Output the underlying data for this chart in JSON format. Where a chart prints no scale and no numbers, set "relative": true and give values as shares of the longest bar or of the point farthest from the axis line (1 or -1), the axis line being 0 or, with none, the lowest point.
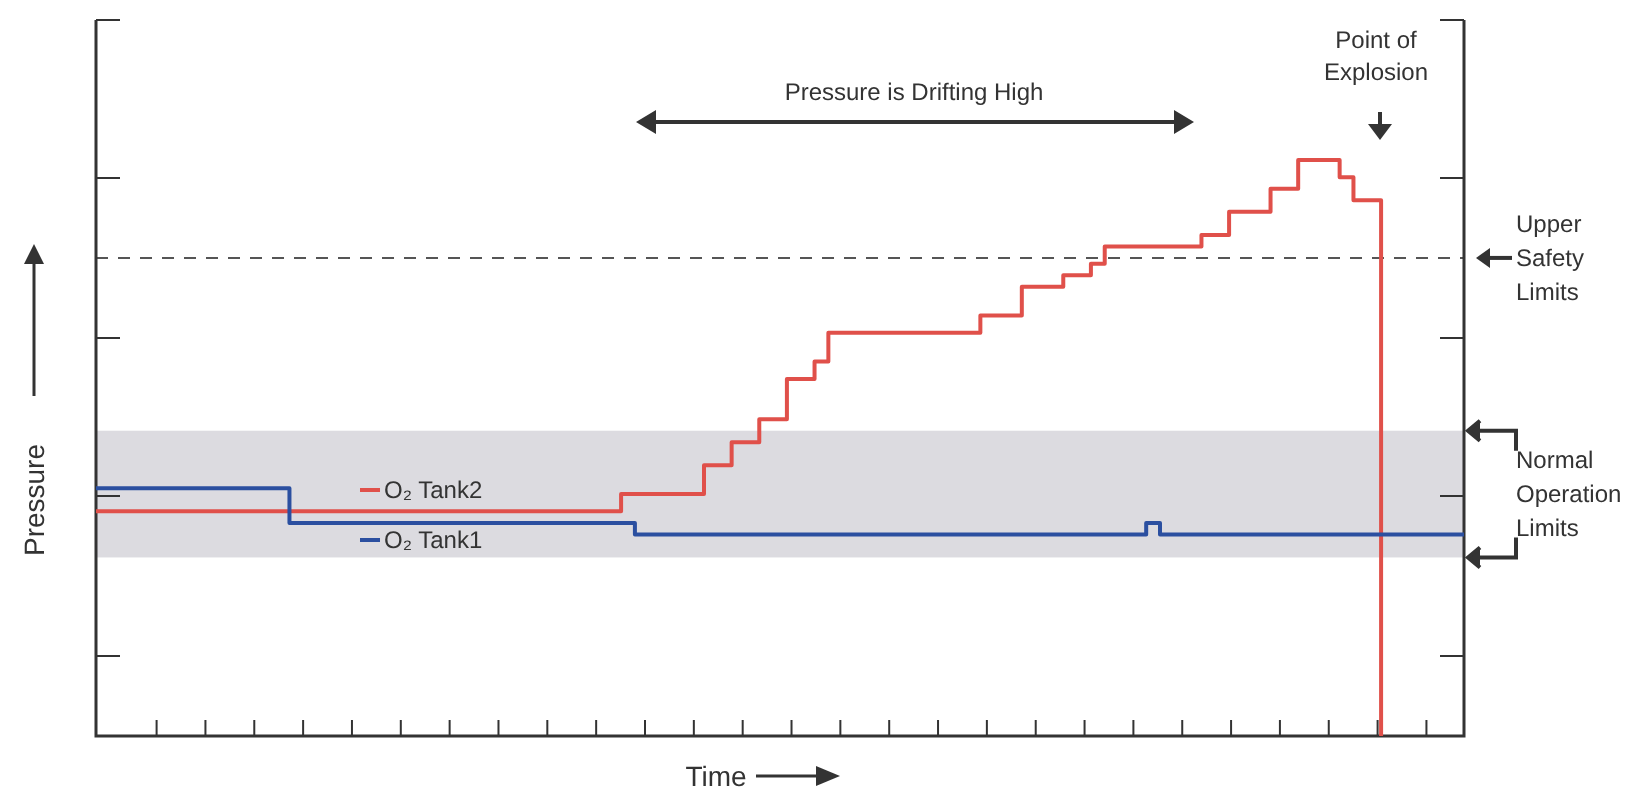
{
  "chart_data": {
    "type": "step",
    "relative": true,
    "xlabel": "Time",
    "ylabel": "Pressure",
    "legend": "left",
    "grid": false,
    "categories": [
      null,
      null,
      null,
      null,
      null,
      null,
      null,
      null,
      null,
      null,
      null,
      null,
      null,
      null,
      null,
      null,
      null,
      null,
      null,
      null,
      null,
      null,
      null,
      null,
      null,
      null,
      null,
      null,
      null,
      null,
      null,
      null,
      null,
      null,
      null,
      null,
      null,
      null,
      null,
      null,
      null,
      null,
      null,
      null,
      null,
      null,
      null,
      null,
      null,
      null,
      null,
      null,
      null,
      null,
      null,
      null,
      null,
      null,
      null,
      null,
      null,
      null,
      null,
      null,
      null,
      null,
      null,
      null,
      null,
      null,
      null,
      null,
      null,
      null,
      null,
      null,
      null,
      null,
      null,
      null,
      null,
      null,
      null,
      null,
      null,
      null,
      null,
      null,
      null,
      null,
      null,
      null,
      null,
      null,
      null,
      null,
      null,
      null,
      null,
      null
    ],
    "series": [
      {
        "name": "O₂ Tank2",
        "color": "#e0504a",
        "values": [
          0.39,
          0.39,
          0.39,
          0.39,
          0.39,
          0.39,
          0.39,
          0.39,
          0.39,
          0.39,
          0.39,
          0.39,
          0.39,
          0.39,
          0.39,
          0.39,
          0.39,
          0.39,
          0.39,
          0.39,
          0.39,
          0.39,
          0.39,
          0.39,
          0.39,
          0.39,
          0.39,
          0.39,
          0.39,
          0.39,
          0.39,
          0.39,
          0.39,
          0.39,
          0.39,
          0.39,
          0.39,
          0.39,
          0.42,
          0.42,
          0.42,
          0.42,
          0.42,
          0.42,
          0.47,
          0.47,
          0.51,
          0.51,
          0.55,
          0.55,
          0.62,
          0.62,
          0.65,
          0.7,
          0.7,
          0.7,
          0.7,
          0.7,
          0.7,
          0.7,
          0.7,
          0.7,
          0.7,
          0.7,
          0.73,
          0.73,
          0.73,
          0.78,
          0.78,
          0.78,
          0.8,
          0.8,
          0.82,
          0.85,
          0.85,
          0.85,
          0.85,
          0.85,
          0.85,
          0.85,
          0.87,
          0.87,
          0.91,
          0.91,
          0.91,
          0.95,
          0.95,
          1,
          1,
          1,
          0.97,
          0.93,
          0.93,
          0,
          null,
          null,
          null,
          null,
          null,
          null
        ]
      },
      {
        "name": "O₂ Tank1",
        "color": "#2b4fa0",
        "values": [
          0.43,
          0.43,
          0.43,
          0.43,
          0.43,
          0.43,
          0.43,
          0.43,
          0.43,
          0.43,
          0.43,
          0.43,
          0.43,
          0.43,
          0.37,
          0.37,
          0.37,
          0.37,
          0.37,
          0.37,
          0.37,
          0.37,
          0.37,
          0.37,
          0.37,
          0.37,
          0.37,
          0.37,
          0.37,
          0.37,
          0.37,
          0.37,
          0.37,
          0.37,
          0.37,
          0.37,
          0.37,
          0.37,
          0.37,
          0.35,
          0.35,
          0.35,
          0.35,
          0.35,
          0.35,
          0.35,
          0.35,
          0.35,
          0.35,
          0.35,
          0.35,
          0.35,
          0.35,
          0.35,
          0.35,
          0.35,
          0.35,
          0.35,
          0.35,
          0.35,
          0.35,
          0.35,
          0.35,
          0.35,
          0.35,
          0.35,
          0.35,
          0.35,
          0.35,
          0.35,
          0.35,
          0.35,
          0.35,
          0.35,
          0.35,
          0.35,
          0.37,
          0.35,
          0.35,
          0.35,
          0.35,
          0.35,
          0.35,
          0.35,
          0.35,
          0.35,
          0.35,
          0.35,
          0.35,
          0.35,
          0.35,
          0.35,
          0.35,
          0.35,
          0.35,
          0.35,
          0.35,
          0.35,
          0.35,
          0.35
        ]
      }
    ],
    "ref_lines": [
      {
        "axis": "y",
        "value": 0.83,
        "label": "Upper Safety Limits",
        "line_style": "dashed",
        "color": "#555555"
      }
    ],
    "bands": [
      {
        "axis": "y",
        "from": 0.31,
        "to": 0.53,
        "label": "Normal Operation Limits",
        "color": "#dcdbe0"
      }
    ],
    "annotations": [
      "Pressure is Drifting High",
      "Point of Explosion"
    ]
  }
}
